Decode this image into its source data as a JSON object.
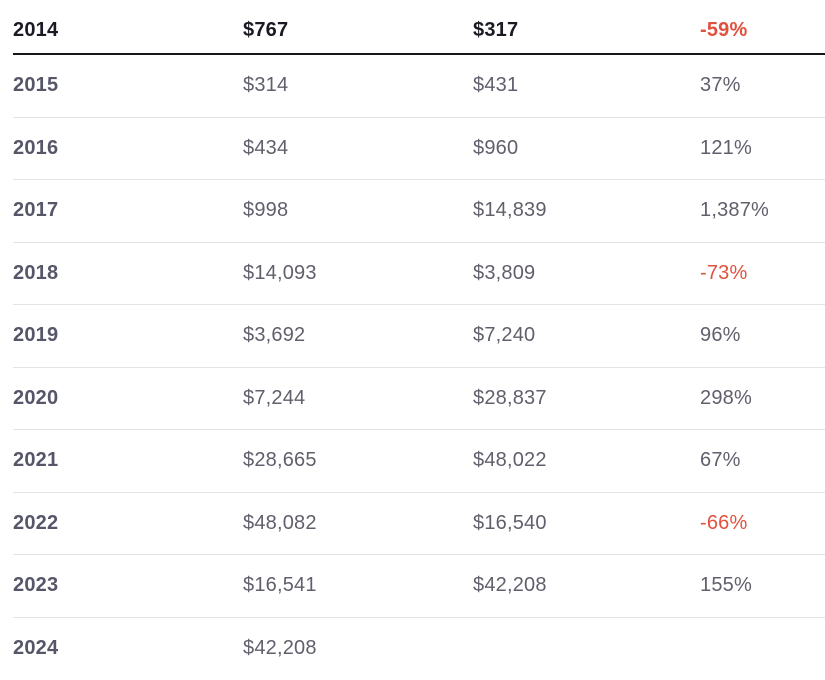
{
  "colors": {
    "background": "#ffffff",
    "highlight_text": "#1a1a22",
    "year_text": "#565669",
    "value_text": "#60606c",
    "negative_text": "#e0513e",
    "divider": "#e3e3e3",
    "highlight_divider": "#15151a"
  },
  "table": {
    "rows": [
      {
        "year": "2014",
        "value1": "$767",
        "value2": "$317",
        "change": "-59%",
        "negative": true,
        "highlighted": true
      },
      {
        "year": "2015",
        "value1": "$314",
        "value2": "$431",
        "change": "37%",
        "negative": false,
        "highlighted": false
      },
      {
        "year": "2016",
        "value1": "$434",
        "value2": "$960",
        "change": "121%",
        "negative": false,
        "highlighted": false
      },
      {
        "year": "2017",
        "value1": "$998",
        "value2": "$14,839",
        "change": "1,387%",
        "negative": false,
        "highlighted": false
      },
      {
        "year": "2018",
        "value1": "$14,093",
        "value2": "$3,809",
        "change": "-73%",
        "negative": true,
        "highlighted": false
      },
      {
        "year": "2019",
        "value1": "$3,692",
        "value2": "$7,240",
        "change": "96%",
        "negative": false,
        "highlighted": false
      },
      {
        "year": "2020",
        "value1": "$7,244",
        "value2": "$28,837",
        "change": "298%",
        "negative": false,
        "highlighted": false
      },
      {
        "year": "2021",
        "value1": "$28,665",
        "value2": "$48,022",
        "change": "67%",
        "negative": false,
        "highlighted": false
      },
      {
        "year": "2022",
        "value1": "$48,082",
        "value2": "$16,540",
        "change": "-66%",
        "negative": true,
        "highlighted": false
      },
      {
        "year": "2023",
        "value1": "$16,541",
        "value2": "$42,208",
        "change": "155%",
        "negative": false,
        "highlighted": false
      },
      {
        "year": "2024",
        "value1": "$42,208",
        "value2": "",
        "change": "",
        "negative": false,
        "highlighted": false
      }
    ]
  },
  "chart_data": {
    "type": "table",
    "header_visible": false,
    "rows": [
      [
        "2014",
        "$767",
        "$317",
        "-59%"
      ],
      [
        "2015",
        "$314",
        "$431",
        "37%"
      ],
      [
        "2016",
        "$434",
        "$960",
        "121%"
      ],
      [
        "2017",
        "$998",
        "$14,839",
        "1,387%"
      ],
      [
        "2018",
        "$14,093",
        "$3,809",
        "-73%"
      ],
      [
        "2019",
        "$3,692",
        "$7,240",
        "96%"
      ],
      [
        "2020",
        "$7,244",
        "$28,837",
        "298%"
      ],
      [
        "2021",
        "$28,665",
        "$48,022",
        "67%"
      ],
      [
        "2022",
        "$48,082",
        "$16,540",
        "-66%"
      ],
      [
        "2023",
        "$16,541",
        "$42,208",
        "155%"
      ],
      [
        "2024",
        "$42,208",
        "",
        ""
      ]
    ],
    "notes": "Yearly values with year-over-year percent change; negative changes shown in red; 2014 row emphasized in bold with dark underline."
  }
}
